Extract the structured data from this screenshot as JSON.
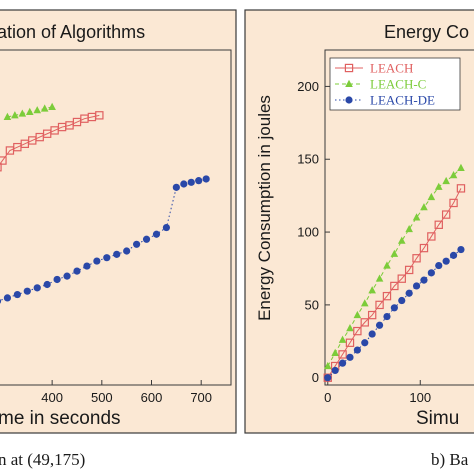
{
  "colors": {
    "panel_bg": "#fbe8d4",
    "panel_border": "#3a3a3a",
    "leach": "#e06060",
    "leach_c": "#7ccc3a",
    "leach_de": "#2a48a8"
  },
  "captions": {
    "left": "n at (49,175)",
    "right": "b) Ba"
  },
  "chart_data": [
    {
      "type": "line",
      "title": "ation of Algorithms",
      "xlabel": "me in seconds",
      "ylabel": "",
      "x_ticks": [
        "400",
        "500",
        "600",
        "700"
      ],
      "x_tick_values": [
        400,
        500,
        600,
        700
      ],
      "xlim": [
        285,
        760
      ],
      "ylim": [
        0,
        100
      ],
      "grid": false,
      "series": [
        {
          "key": "leach_c",
          "marker": "triangle",
          "points": [
            [
              310,
              80
            ],
            [
              325,
              80.5
            ],
            [
              340,
              81
            ],
            [
              355,
              81.5
            ],
            [
              370,
              82
            ],
            [
              385,
              82.5
            ],
            [
              400,
              83
            ]
          ]
        },
        {
          "key": "leach",
          "marker": "square",
          "points": [
            [
              290,
              65
            ],
            [
              300,
              67
            ],
            [
              315,
              70
            ],
            [
              330,
              71
            ],
            [
              345,
              72
            ],
            [
              360,
              73
            ],
            [
              375,
              74
            ],
            [
              390,
              75
            ],
            [
              405,
              76
            ],
            [
              420,
              77
            ],
            [
              435,
              77.5
            ],
            [
              450,
              78.5
            ],
            [
              465,
              79.5
            ],
            [
              480,
              80
            ],
            [
              495,
              80.5
            ]
          ]
        },
        {
          "key": "leach_de",
          "marker": "circle",
          "points": [
            [
              290,
              25
            ],
            [
              310,
              26
            ],
            [
              330,
              27
            ],
            [
              350,
              28
            ],
            [
              370,
              29
            ],
            [
              390,
              30
            ],
            [
              410,
              31.5
            ],
            [
              430,
              32.5
            ],
            [
              450,
              34
            ],
            [
              470,
              35.5
            ],
            [
              490,
              37
            ],
            [
              510,
              38
            ],
            [
              530,
              39
            ],
            [
              550,
              40
            ],
            [
              570,
              42
            ],
            [
              590,
              43.5
            ],
            [
              610,
              45
            ],
            [
              630,
              47
            ],
            [
              650,
              59
            ],
            [
              665,
              60
            ],
            [
              680,
              60.5
            ],
            [
              695,
              61
            ],
            [
              710,
              61.5
            ]
          ]
        }
      ]
    },
    {
      "type": "line",
      "title": "Energy Co",
      "xlabel": "Simu",
      "ylabel": "Energy Consumption in joules",
      "x_ticks": [
        "0",
        "100"
      ],
      "x_tick_values": [
        0,
        100
      ],
      "y_ticks": [
        "0",
        "50",
        "100",
        "150",
        "200"
      ],
      "y_tick_values": [
        0,
        50,
        100,
        150,
        200
      ],
      "xlim": [
        -3,
        170
      ],
      "ylim": [
        -5,
        225
      ],
      "grid": false,
      "legend": {
        "placement": "top-right",
        "entries": [
          {
            "label": "LEACH",
            "key": "leach",
            "marker": "square"
          },
          {
            "label": "LEACH-C",
            "key": "leach_c",
            "marker": "triangle"
          },
          {
            "label": "LEACH-DE",
            "key": "leach_de",
            "marker": "circle"
          }
        ]
      },
      "series": [
        {
          "key": "leach_c",
          "marker": "triangle",
          "points": [
            [
              0,
              8
            ],
            [
              8,
              17
            ],
            [
              16,
              26
            ],
            [
              24,
              34
            ],
            [
              32,
              43
            ],
            [
              40,
              51
            ],
            [
              48,
              60
            ],
            [
              56,
              68
            ],
            [
              64,
              77
            ],
            [
              72,
              85
            ],
            [
              80,
              94
            ],
            [
              88,
              102
            ],
            [
              96,
              110
            ],
            [
              104,
              117
            ],
            [
              112,
              124
            ],
            [
              120,
              131
            ],
            [
              128,
              135
            ],
            [
              136,
              139
            ],
            [
              144,
              144
            ]
          ]
        },
        {
          "key": "leach",
          "marker": "square",
          "points": [
            [
              0,
              0
            ],
            [
              8,
              8
            ],
            [
              16,
              16
            ],
            [
              24,
              24
            ],
            [
              32,
              32
            ],
            [
              40,
              38
            ],
            [
              48,
              43
            ],
            [
              56,
              50
            ],
            [
              64,
              56
            ],
            [
              72,
              63
            ],
            [
              80,
              68
            ],
            [
              88,
              74
            ],
            [
              96,
              82
            ],
            [
              104,
              89
            ],
            [
              112,
              97
            ],
            [
              120,
              105
            ],
            [
              128,
              112
            ],
            [
              136,
              120
            ],
            [
              144,
              130
            ]
          ]
        },
        {
          "key": "leach_de",
          "marker": "circle",
          "points": [
            [
              0,
              0
            ],
            [
              8,
              5
            ],
            [
              16,
              10
            ],
            [
              24,
              14
            ],
            [
              32,
              19
            ],
            [
              40,
              24
            ],
            [
              48,
              30
            ],
            [
              56,
              36
            ],
            [
              64,
              42
            ],
            [
              72,
              48
            ],
            [
              80,
              53
            ],
            [
              88,
              58
            ],
            [
              96,
              63
            ],
            [
              104,
              67
            ],
            [
              112,
              72
            ],
            [
              120,
              77
            ],
            [
              128,
              80
            ],
            [
              136,
              84
            ],
            [
              144,
              88
            ]
          ]
        }
      ]
    }
  ]
}
